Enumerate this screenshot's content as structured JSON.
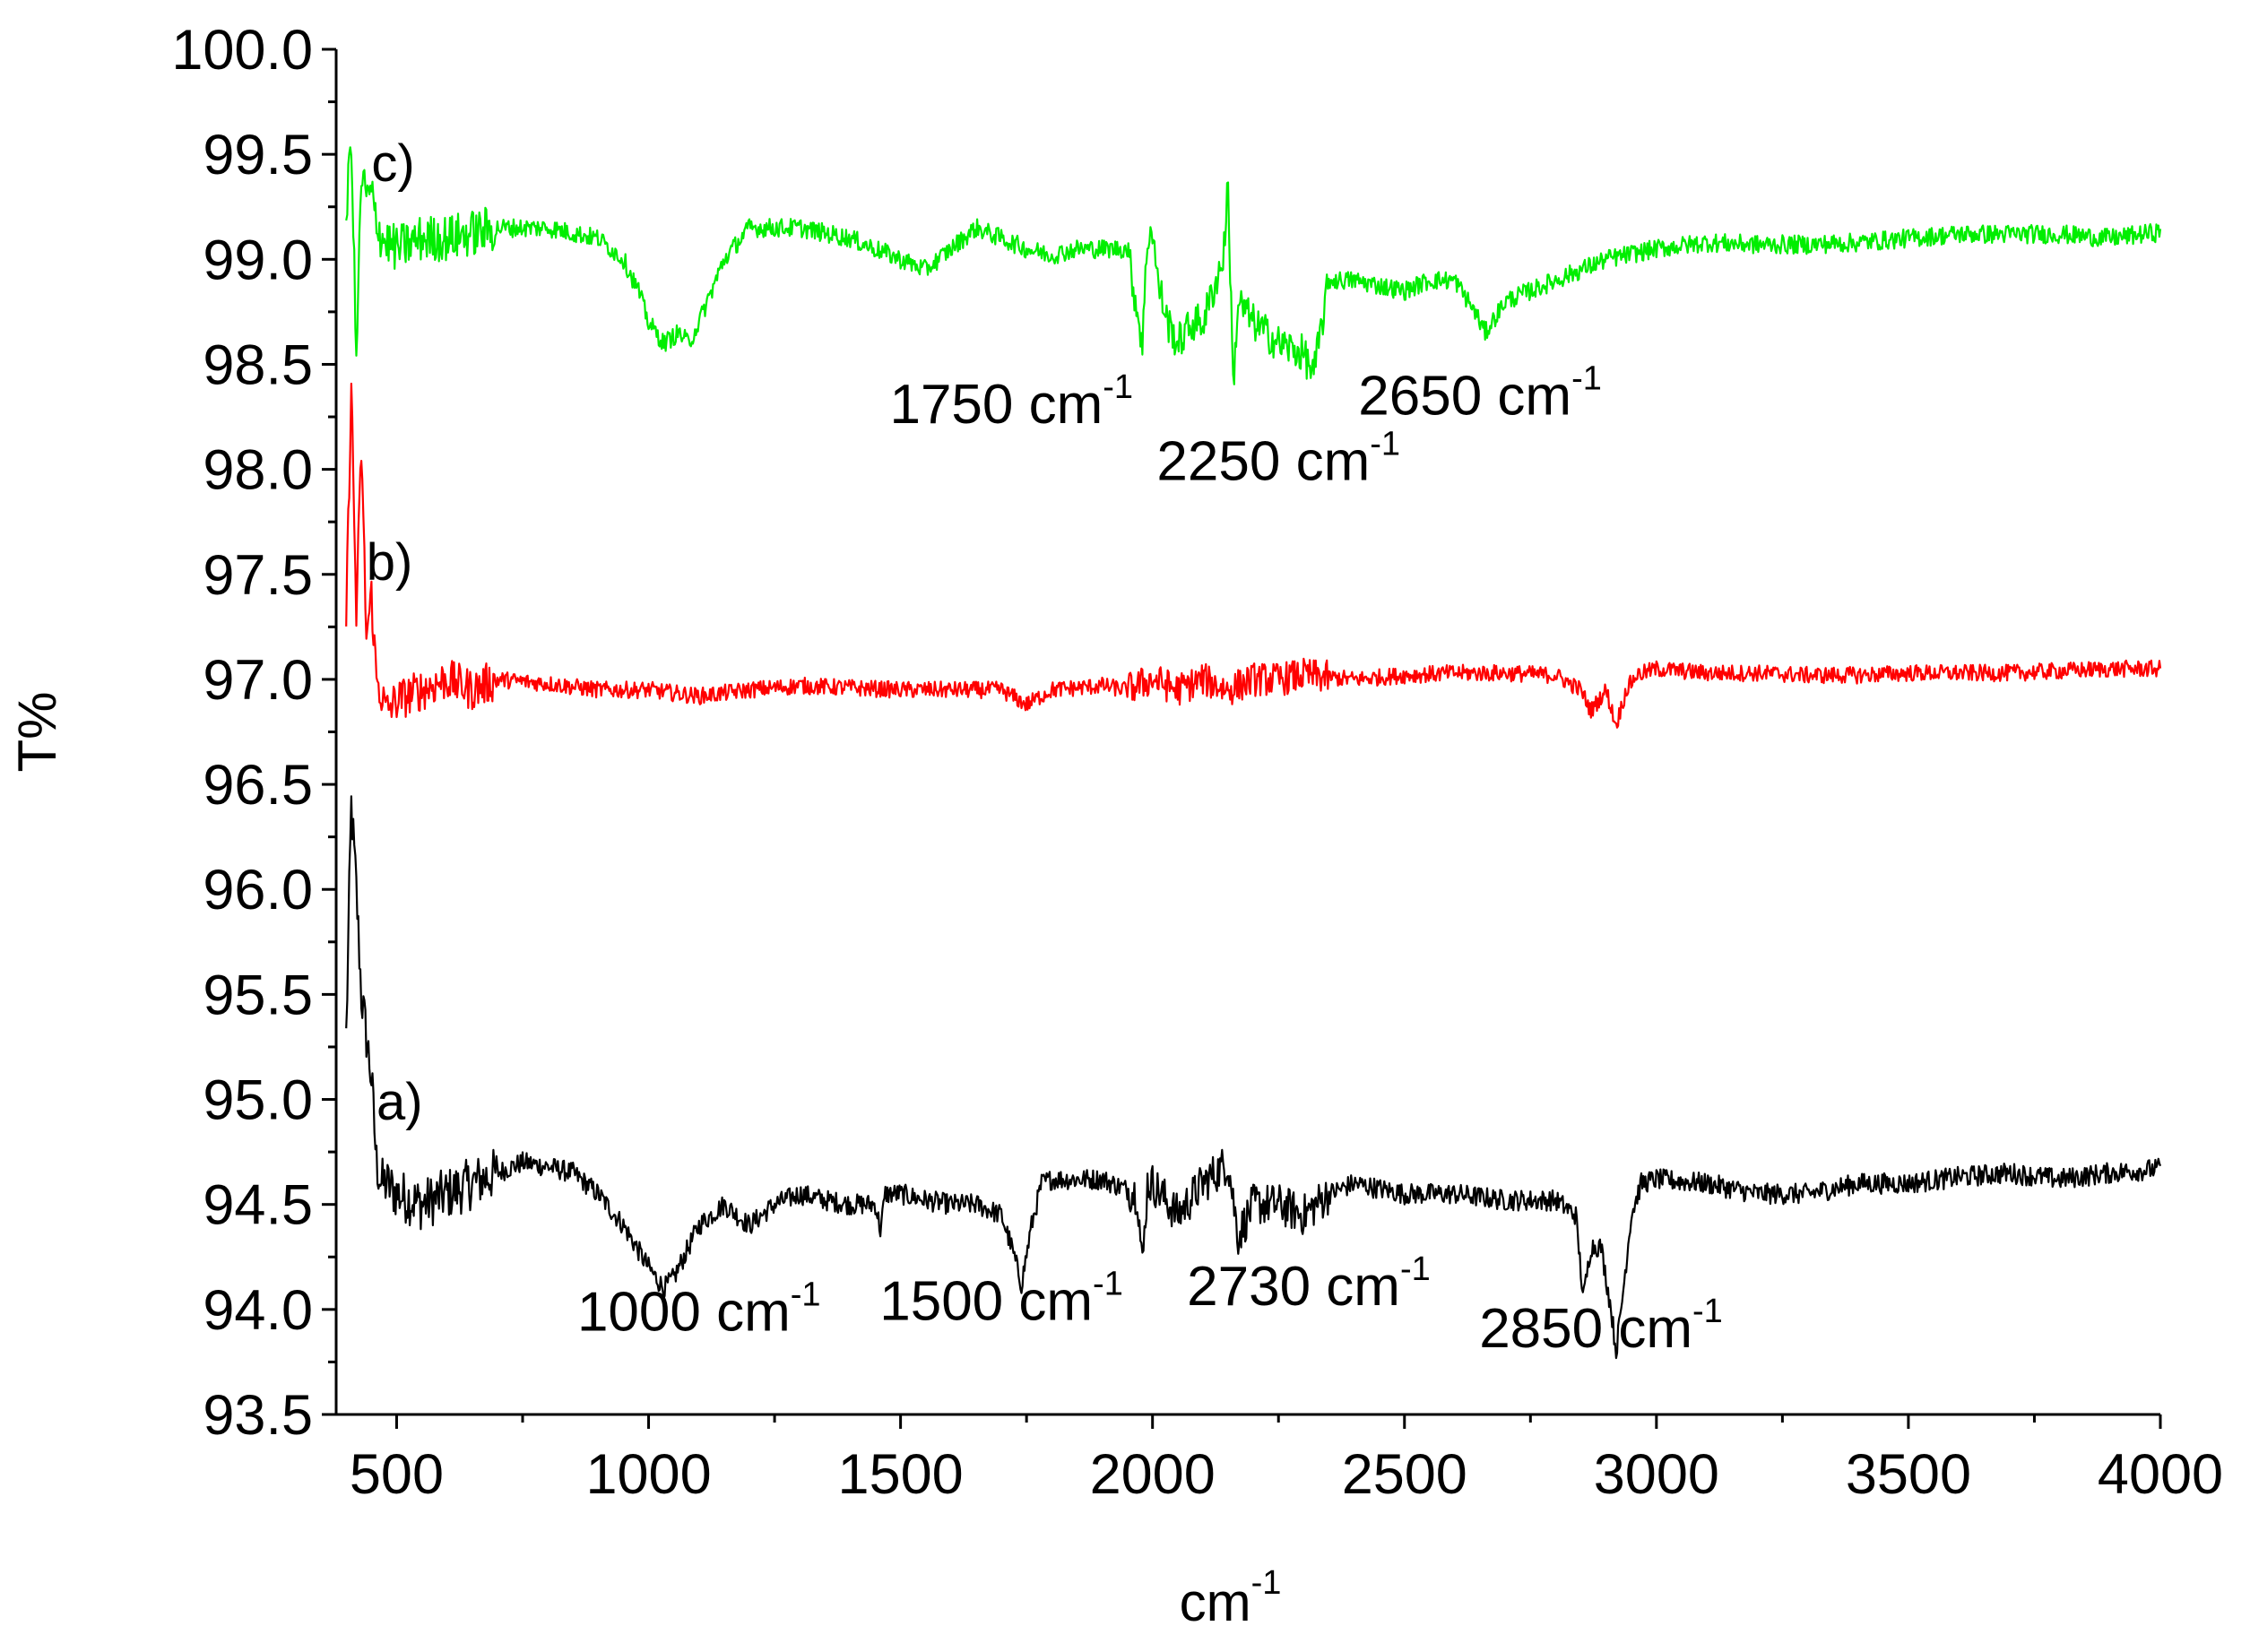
{
  "chart_data": {
    "type": "line",
    "title": "",
    "xlabel": "cm",
    "xlabel_sup": "-1",
    "ylabel": "T%",
    "xlim": [
      380,
      4000
    ],
    "ylim": [
      93.5,
      100.0
    ],
    "x_ticks": [
      500,
      1000,
      1500,
      2000,
      2500,
      3000,
      3500,
      4000
    ],
    "x_tick_labels": [
      "500",
      "1000",
      "1500",
      "2000",
      "2500",
      "3000",
      "3500",
      "4000"
    ],
    "y_ticks": [
      93.5,
      94.0,
      94.5,
      95.0,
      95.5,
      96.0,
      96.5,
      97.0,
      97.5,
      98.0,
      98.5,
      99.0,
      99.5,
      100.0
    ],
    "y_tick_labels": [
      "93.5",
      "94.0",
      "94.5",
      "95.0",
      "95.5",
      "96.0",
      "96.5",
      "97.0",
      "97.5",
      "98.0",
      "98.5",
      "99.0",
      "99.5",
      "100.0"
    ],
    "grid": false,
    "legend": "none",
    "series": [
      {
        "name": "a)",
        "color": "#000000",
        "noise": 0.05,
        "x": [
          400,
          410,
          420,
          430,
          440,
          450,
          460,
          470,
          480,
          500,
          550,
          600,
          650,
          700,
          750,
          800,
          850,
          900,
          950,
          1000,
          1030,
          1050,
          1080,
          1100,
          1150,
          1200,
          1250,
          1300,
          1350,
          1400,
          1450,
          1460,
          1470,
          1500,
          1550,
          1600,
          1650,
          1700,
          1720,
          1740,
          1760,
          1780,
          1800,
          1900,
          1970,
          1980,
          1990,
          2000,
          2050,
          2100,
          2150,
          2170,
          2200,
          2250,
          2300,
          2350,
          2400,
          2500,
          2600,
          2700,
          2800,
          2840,
          2855,
          2870,
          2890,
          2910,
          2920,
          2930,
          2950,
          2970,
          3000,
          3100,
          3200,
          3300,
          3400,
          3500,
          3600,
          3700,
          3800,
          3900,
          4000
        ],
        "y": [
          95.3,
          96.4,
          96.0,
          95.5,
          95.3,
          95.1,
          94.7,
          94.6,
          94.6,
          94.55,
          94.5,
          94.55,
          94.6,
          94.65,
          94.7,
          94.68,
          94.65,
          94.55,
          94.4,
          94.2,
          94.1,
          94.15,
          94.3,
          94.4,
          94.5,
          94.4,
          94.5,
          94.55,
          94.52,
          94.5,
          94.5,
          94.38,
          94.55,
          94.55,
          94.52,
          94.5,
          94.5,
          94.45,
          94.3,
          94.12,
          94.4,
          94.6,
          94.62,
          94.62,
          94.55,
          94.2,
          94.6,
          94.6,
          94.45,
          94.6,
          94.7,
          94.35,
          94.5,
          94.5,
          94.45,
          94.55,
          94.6,
          94.55,
          94.55,
          94.52,
          94.52,
          94.45,
          94.05,
          94.3,
          94.3,
          94.0,
          93.8,
          94.0,
          94.45,
          94.6,
          94.62,
          94.6,
          94.55,
          94.55,
          94.6,
          94.6,
          94.63,
          94.65,
          94.62,
          94.65,
          94.67
        ]
      },
      {
        "name": "b)",
        "color": "#ff0000",
        "noise": 0.04,
        "x": [
          400,
          410,
          420,
          430,
          440,
          450,
          460,
          480,
          500,
          550,
          600,
          650,
          700,
          800,
          900,
          1000,
          1100,
          1200,
          1300,
          1400,
          1500,
          1600,
          1700,
          1750,
          1800,
          1900,
          1950,
          2000,
          2050,
          2100,
          2150,
          2200,
          2250,
          2300,
          2400,
          2500,
          2600,
          2700,
          2800,
          2850,
          2870,
          2900,
          2920,
          2940,
          2960,
          3000,
          3100,
          3200,
          3300,
          3400,
          3500,
          3600,
          3700,
          3800,
          3900,
          4000
        ],
        "y": [
          97.3,
          98.4,
          97.3,
          98.1,
          97.2,
          97.4,
          97.0,
          96.85,
          96.9,
          96.95,
          97.0,
          96.95,
          97.0,
          96.98,
          96.95,
          96.95,
          96.92,
          96.95,
          96.97,
          96.96,
          96.95,
          96.95,
          96.95,
          96.88,
          96.95,
          96.97,
          96.95,
          97.0,
          96.95,
          97.0,
          96.95,
          97.0,
          97.0,
          97.02,
          97.0,
          97.02,
          97.03,
          97.03,
          97.02,
          96.95,
          96.85,
          96.95,
          96.78,
          96.95,
          97.02,
          97.05,
          97.03,
          97.03,
          97.02,
          97.02,
          97.03,
          97.03,
          97.03,
          97.04,
          97.05,
          97.05
        ]
      },
      {
        "name": "c)",
        "color": "#00ee00",
        "noise": 0.045,
        "x": [
          400,
          410,
          420,
          430,
          440,
          450,
          470,
          500,
          550,
          600,
          700,
          800,
          900,
          950,
          980,
          1000,
          1030,
          1060,
          1080,
          1100,
          1150,
          1200,
          1250,
          1300,
          1400,
          1500,
          1550,
          1600,
          1650,
          1700,
          1750,
          1800,
          1850,
          1900,
          1950,
          1980,
          1990,
          2000,
          2010,
          2030,
          2050,
          2080,
          2100,
          2140,
          2150,
          2160,
          2170,
          2200,
          2250,
          2300,
          2320,
          2350,
          2400,
          2500,
          2550,
          2600,
          2640,
          2660,
          2700,
          2800,
          2900,
          3000,
          3100,
          3200,
          3300,
          3400,
          3500,
          3600,
          3700,
          3800,
          3900,
          4000
        ],
        "y": [
          99.2,
          99.6,
          98.5,
          99.4,
          99.3,
          99.3,
          99.1,
          99.05,
          99.1,
          99.1,
          99.15,
          99.15,
          99.1,
          99.0,
          98.85,
          98.7,
          98.6,
          98.65,
          98.6,
          98.7,
          99.0,
          99.15,
          99.15,
          99.15,
          99.1,
          99.0,
          98.95,
          99.05,
          99.15,
          99.1,
          99.05,
          99.02,
          99.05,
          99.05,
          99.05,
          98.6,
          99.1,
          99.15,
          98.9,
          98.7,
          98.6,
          98.7,
          98.7,
          99.0,
          99.35,
          98.4,
          98.8,
          98.7,
          98.6,
          98.55,
          98.45,
          98.9,
          98.9,
          98.85,
          98.9,
          98.9,
          98.75,
          98.65,
          98.8,
          98.9,
          99.0,
          99.05,
          99.08,
          99.07,
          99.07,
          99.08,
          99.1,
          99.12,
          99.12,
          99.12,
          99.1,
          99.13
        ]
      }
    ],
    "series_labels": [
      {
        "text": "a)",
        "x": 460,
        "y": 94.98
      },
      {
        "text": "b)",
        "x": 440,
        "y": 97.55
      },
      {
        "text": "c)",
        "x": 450,
        "y": 99.45
      }
    ],
    "annotations": [
      {
        "text": "1000 cm",
        "sup": "-1",
        "x": 1100,
        "y": 93.9
      },
      {
        "text": "1500 cm",
        "sup": "-1",
        "x": 1700,
        "y": 93.95
      },
      {
        "text": "2730 cm",
        "sup": "-1",
        "x": 2310,
        "y": 94.02
      },
      {
        "text": "2850 cm",
        "sup": "-1",
        "x": 2890,
        "y": 93.82
      },
      {
        "text": "1750 cm",
        "sup": "-1",
        "x": 1720,
        "y": 98.22
      },
      {
        "text": "2250 cm",
        "sup": "-1",
        "x": 2250,
        "y": 97.95
      },
      {
        "text": "2650 cm",
        "sup": "-1",
        "x": 2650,
        "y": 98.26
      }
    ]
  }
}
